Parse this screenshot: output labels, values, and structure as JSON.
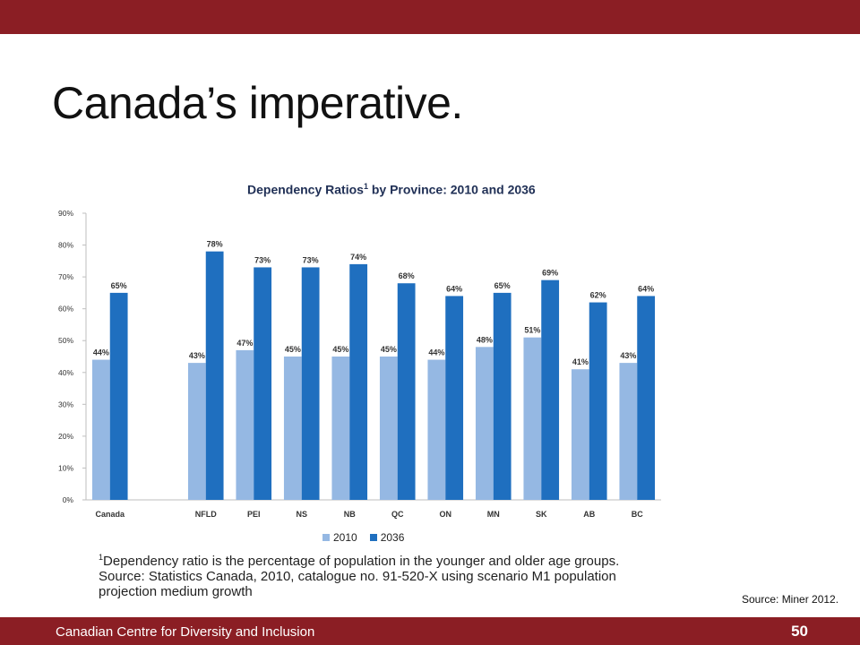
{
  "slide": {
    "title": "Canada’s imperative.",
    "source_note": "Source: Miner 2012.",
    "footer_org": "Canadian Centre for Diversity and Inclusion",
    "page_number": "50"
  },
  "footnote": {
    "marker": "1",
    "line1": "Dependency ratio is the percentage of population in the younger and older age groups.",
    "line2": "Source: Statistics Canada, 2010, catalogue no. 91-520-X using scenario M1 population",
    "line3": "projection  medium growth"
  },
  "colors": {
    "band": "#8b1e24",
    "series_2010": "#95b8e3",
    "series_2036": "#1f6fbf"
  },
  "chart_data": {
    "type": "bar",
    "title": "Dependency Ratios",
    "title_superscript": "1",
    "title_suffix": "by Province: 2010 and 2036",
    "categories": [
      "Canada",
      "NFLD",
      "PEI",
      "NS",
      "NB",
      "QC",
      "ON",
      "MN",
      "SK",
      "AB",
      "BC"
    ],
    "series": [
      {
        "name": "2010",
        "values": [
          44,
          43,
          47,
          45,
          45,
          45,
          44,
          48,
          51,
          41,
          43
        ],
        "color": "#95b8e3"
      },
      {
        "name": "2036",
        "values": [
          65,
          78,
          73,
          73,
          74,
          68,
          64,
          65,
          69,
          62,
          64
        ],
        "color": "#1f6fbf"
      }
    ],
    "ylim": [
      0,
      90
    ],
    "yticks": [
      "0%",
      "10%",
      "20%",
      "30%",
      "40%",
      "50%",
      "60%",
      "70%",
      "80%",
      "90%"
    ],
    "value_suffix": "%",
    "gap_after_first_category": true,
    "legend_position": "bottom",
    "grid": false
  }
}
